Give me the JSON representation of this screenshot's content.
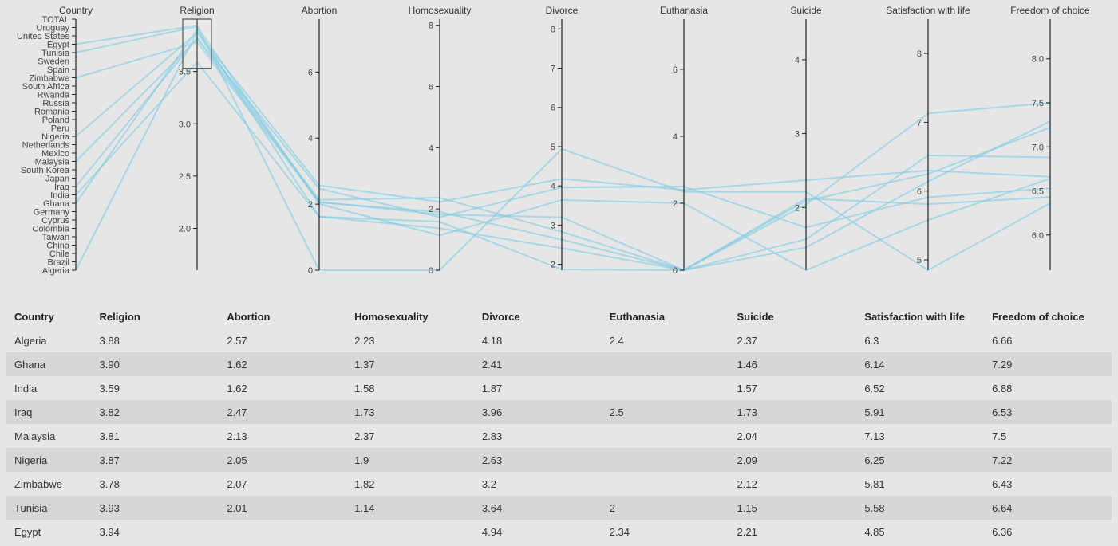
{
  "chart_data": {
    "type": "parallel-coordinates",
    "countries_axis": {
      "title": "Country",
      "labels": [
        "TOTAL",
        "Uruguay",
        "United States",
        "Egypt",
        "Tunisia",
        "Sweden",
        "Spain",
        "Zimbabwe",
        "South Africa",
        "Rwanda",
        "Russia",
        "Romania",
        "Poland",
        "Peru",
        "Nigeria",
        "Netherlands",
        "Mexico",
        "Malaysia",
        "South Korea",
        "Japan",
        "Iraq",
        "India",
        "Ghana",
        "Germany",
        "Cyprus",
        "Colombia",
        "Taiwan",
        "China",
        "Chile",
        "Brazil",
        "Algeria"
      ]
    },
    "axes": [
      {
        "key": "religion",
        "title": "Religion",
        "domain": [
          1.6,
          4.0
        ],
        "ticks": [
          2.0,
          2.5,
          3.0,
          3.5
        ],
        "tick_labels": [
          "2.0",
          "2.5",
          "3.0",
          "3.5"
        ],
        "brush": [
          3.53,
          4.0
        ]
      },
      {
        "key": "abortion",
        "title": "Abortion",
        "domain": [
          0,
          7.6
        ],
        "ticks": [
          0,
          2,
          4,
          6
        ],
        "tick_labels": [
          "0",
          "2",
          "4",
          "6"
        ]
      },
      {
        "key": "homosexuality",
        "title": "Homosexuality",
        "domain": [
          0,
          8.2
        ],
        "ticks": [
          0,
          2,
          4,
          6,
          8
        ],
        "tick_labels": [
          "0",
          "2",
          "4",
          "6",
          "8"
        ]
      },
      {
        "key": "divorce",
        "title": "Divorce",
        "domain": [
          1.85,
          8.25
        ],
        "ticks": [
          2,
          3,
          4,
          5,
          6,
          7,
          8
        ],
        "tick_labels": [
          "2",
          "3",
          "4",
          "5",
          "6",
          "7",
          "8"
        ]
      },
      {
        "key": "euthanasia",
        "title": "Euthanasia",
        "domain": [
          0,
          7.5
        ],
        "ticks": [
          0,
          2,
          4,
          6
        ],
        "tick_labels": [
          "0",
          "2",
          "4",
          "6"
        ]
      },
      {
        "key": "suicide",
        "title": "Suicide",
        "domain": [
          1.15,
          4.55
        ],
        "ticks": [
          2,
          3,
          4
        ],
        "tick_labels": [
          "2",
          "3",
          "4"
        ]
      },
      {
        "key": "satisfaction",
        "title": "Satisfaction with life",
        "domain": [
          4.85,
          8.5
        ],
        "ticks": [
          5,
          6,
          7,
          8
        ],
        "tick_labels": [
          "5",
          "6",
          "7",
          "8"
        ]
      },
      {
        "key": "freedom",
        "title": "Freedom of choice",
        "domain": [
          5.6,
          8.45
        ],
        "ticks": [
          6.0,
          6.5,
          7.0,
          7.5,
          8.0
        ],
        "tick_labels": [
          "6.0",
          "6.5",
          "7.0",
          "7.5",
          "8.0"
        ]
      }
    ],
    "series": [
      {
        "country": "Algeria",
        "religion": 3.88,
        "abortion": 2.57,
        "homosexuality": 2.23,
        "divorce": 4.18,
        "euthanasia": 2.4,
        "suicide": 2.37,
        "satisfaction": 6.3,
        "freedom": 6.66
      },
      {
        "country": "Ghana",
        "religion": 3.9,
        "abortion": 1.62,
        "homosexuality": 1.37,
        "divorce": 2.41,
        "euthanasia": null,
        "suicide": 1.46,
        "satisfaction": 6.14,
        "freedom": 7.29
      },
      {
        "country": "India",
        "religion": 3.59,
        "abortion": 1.62,
        "homosexuality": 1.58,
        "divorce": 1.87,
        "euthanasia": null,
        "suicide": 1.57,
        "satisfaction": 6.52,
        "freedom": 6.88
      },
      {
        "country": "Iraq",
        "religion": 3.82,
        "abortion": 2.47,
        "homosexuality": 1.73,
        "divorce": 3.96,
        "euthanasia": 2.5,
        "suicide": 1.73,
        "satisfaction": 5.91,
        "freedom": 6.53
      },
      {
        "country": "Malaysia",
        "religion": 3.81,
        "abortion": 2.13,
        "homosexuality": 2.37,
        "divorce": 2.83,
        "euthanasia": null,
        "suicide": 2.04,
        "satisfaction": 7.13,
        "freedom": 7.5
      },
      {
        "country": "Nigeria",
        "religion": 3.87,
        "abortion": 2.05,
        "homosexuality": 1.9,
        "divorce": 2.63,
        "euthanasia": null,
        "suicide": 2.09,
        "satisfaction": 6.25,
        "freedom": 7.22
      },
      {
        "country": "Zimbabwe",
        "religion": 3.78,
        "abortion": 2.07,
        "homosexuality": 1.82,
        "divorce": 3.2,
        "euthanasia": null,
        "suicide": 2.12,
        "satisfaction": 5.81,
        "freedom": 6.43
      },
      {
        "country": "Tunisia",
        "religion": 3.93,
        "abortion": 2.01,
        "homosexuality": 1.14,
        "divorce": 3.64,
        "euthanasia": 2,
        "suicide": 1.15,
        "satisfaction": 5.58,
        "freedom": 6.64
      },
      {
        "country": "Egypt",
        "religion": 3.94,
        "abortion": null,
        "homosexuality": null,
        "divorce": 4.94,
        "euthanasia": 2.34,
        "suicide": 2.21,
        "satisfaction": 4.85,
        "freedom": 6.36
      }
    ],
    "line_color": "#7fcbe3"
  },
  "table": {
    "headers": [
      "Country",
      "Religion",
      "Abortion",
      "Homosexuality",
      "Divorce",
      "Euthanasia",
      "Suicide",
      "Satisfaction with life",
      "Freedom of choice"
    ],
    "rows": [
      [
        "Algeria",
        "3.88",
        "2.57",
        "2.23",
        "4.18",
        "2.4",
        "2.37",
        "6.3",
        "6.66"
      ],
      [
        "Ghana",
        "3.90",
        "1.62",
        "1.37",
        "2.41",
        "",
        "1.46",
        "6.14",
        "7.29"
      ],
      [
        "India",
        "3.59",
        "1.62",
        "1.58",
        "1.87",
        "",
        "1.57",
        "6.52",
        "6.88"
      ],
      [
        "Iraq",
        "3.82",
        "2.47",
        "1.73",
        "3.96",
        "2.5",
        "1.73",
        "5.91",
        "6.53"
      ],
      [
        "Malaysia",
        "3.81",
        "2.13",
        "2.37",
        "2.83",
        "",
        "2.04",
        "7.13",
        "7.5"
      ],
      [
        "Nigeria",
        "3.87",
        "2.05",
        "1.9",
        "2.63",
        "",
        "2.09",
        "6.25",
        "7.22"
      ],
      [
        "Zimbabwe",
        "3.78",
        "2.07",
        "1.82",
        "3.2",
        "",
        "2.12",
        "5.81",
        "6.43"
      ],
      [
        "Tunisia",
        "3.93",
        "2.01",
        "1.14",
        "3.64",
        "2",
        "1.15",
        "5.58",
        "6.64"
      ],
      [
        "Egypt",
        "3.94",
        "",
        "",
        "4.94",
        "2.34",
        "2.21",
        "4.85",
        "6.36"
      ]
    ]
  }
}
